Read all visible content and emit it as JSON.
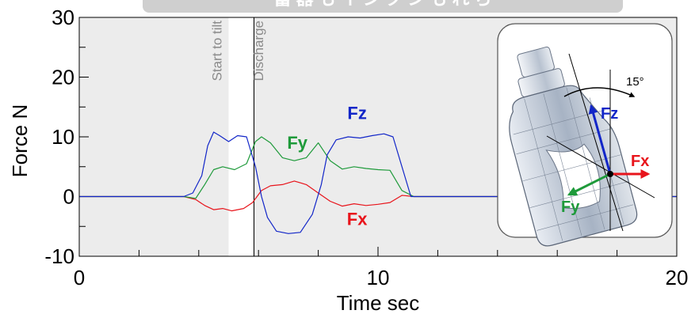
{
  "chart_data": {
    "type": "line",
    "xlabel": "Time  sec",
    "ylabel": "Force  N",
    "xlim": [
      0,
      20
    ],
    "ylim": [
      -10,
      30
    ],
    "x_ticks": [
      0,
      10,
      20
    ],
    "y_ticks": [
      -10,
      0,
      10,
      20,
      30
    ],
    "grid": false,
    "background": "#ececec",
    "annotations": [
      {
        "text": "Start to tilt",
        "x": 4.6
      },
      {
        "text": "Discharge",
        "x": 6.0
      }
    ],
    "tilt_band": [
      5.0,
      5.8
    ],
    "discharge_line_x": 5.85,
    "series": [
      {
        "name": "Fx",
        "color": "#e8141b",
        "x": [
          0,
          3.5,
          3.9,
          4.2,
          4.5,
          4.8,
          5.1,
          5.5,
          5.8,
          6.1,
          6.4,
          6.8,
          7.2,
          7.6,
          8.0,
          8.4,
          8.8,
          9.2,
          9.6,
          10.0,
          10.4,
          10.8,
          11.2,
          20
        ],
        "y": [
          0,
          0,
          -0.5,
          -1.5,
          -2.2,
          -2.0,
          -2.4,
          -2.0,
          -1.0,
          1.0,
          1.8,
          2.0,
          2.6,
          2.0,
          0.6,
          -0.8,
          -1.6,
          -1.2,
          -1.5,
          -1.3,
          -1.0,
          0.2,
          0,
          0
        ]
      },
      {
        "name": "Fy",
        "color": "#1e9a3a",
        "x": [
          0,
          3.5,
          3.9,
          4.2,
          4.5,
          4.8,
          5.2,
          5.6,
          5.9,
          6.1,
          6.4,
          6.8,
          7.2,
          7.6,
          8.0,
          8.4,
          8.8,
          9.2,
          9.6,
          10.0,
          10.4,
          10.8,
          11.2,
          20
        ],
        "y": [
          0,
          0,
          -0.3,
          2.0,
          4.5,
          5.0,
          4.5,
          5.5,
          9.2,
          10.0,
          9.0,
          6.5,
          6.0,
          6.5,
          9.0,
          6.0,
          4.6,
          5.0,
          4.7,
          4.5,
          4.4,
          1.0,
          0,
          0
        ]
      },
      {
        "name": "Fz",
        "color": "#1226c8",
        "x": [
          0,
          3.5,
          3.8,
          4.1,
          4.3,
          4.5,
          4.7,
          5.0,
          5.3,
          5.6,
          5.9,
          6.1,
          6.3,
          6.6,
          7.0,
          7.4,
          7.8,
          8.1,
          8.3,
          8.6,
          9.0,
          9.4,
          9.8,
          10.2,
          10.5,
          10.8,
          11.1,
          20
        ],
        "y": [
          0,
          0,
          0.6,
          3.5,
          8.5,
          10.8,
          10.2,
          9.2,
          10.2,
          10.0,
          5.0,
          0,
          -3.5,
          -5.8,
          -6.2,
          -6.0,
          -3.0,
          2.0,
          7.0,
          9.5,
          10.0,
          9.8,
          10.2,
          10.5,
          10.0,
          5.0,
          0,
          0
        ]
      }
    ],
    "series_labels": [
      {
        "text": "Fz",
        "color": "#1226c8",
        "x": 9.3,
        "y": 13.0
      },
      {
        "text": "Fy",
        "color": "#1e9a3a",
        "x": 7.3,
        "y": 8.0
      },
      {
        "text": "Fx",
        "color": "#e8141b",
        "x": 9.3,
        "y": -4.8
      }
    ]
  },
  "inset": {
    "fz_label": "Fz",
    "fx_label": "Fx",
    "fy_label": "Fy",
    "angle_label": "15°",
    "fz_color": "#1226c8",
    "fx_color": "#e8141b",
    "fy_color": "#1e9a3a"
  },
  "top_banner": {
    "color": "#cfcfcf",
    "text": "蓄 器 も イ ン ク ン も れ ら"
  }
}
